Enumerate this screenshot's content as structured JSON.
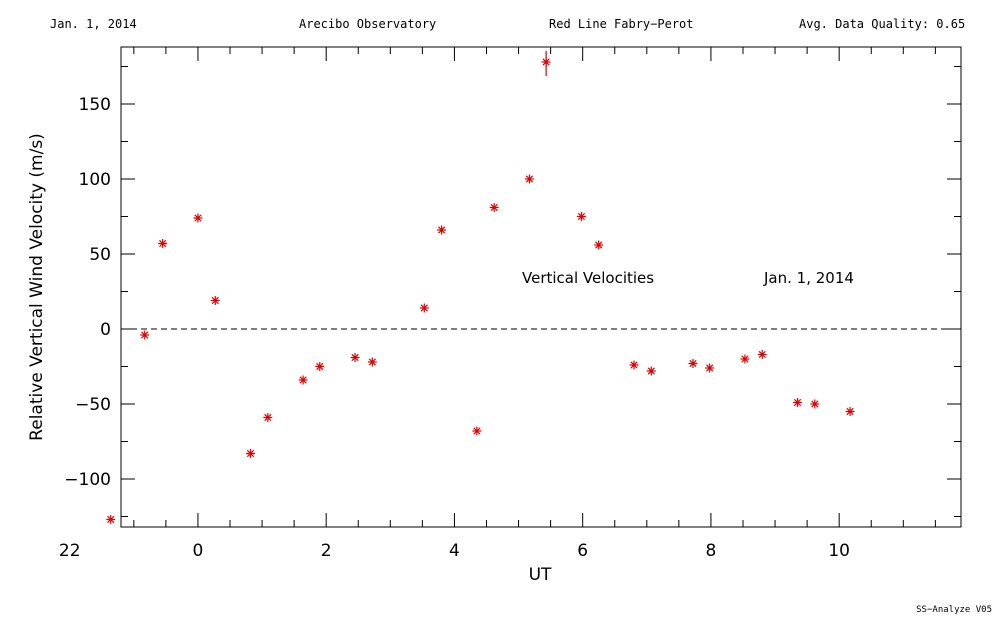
{
  "header": {
    "date": "Jan. 1, 2014",
    "observatory": "Arecibo Observatory",
    "instrument": "Red Line Fabry−Perot",
    "quality": "Avg. Data Quality: 0.65"
  },
  "footer": {
    "software": "SS−Analyze V05"
  },
  "chart_data": {
    "type": "scatter",
    "title": "",
    "xlabel": "UT",
    "ylabel": "Relative Vertical Wind Velocity (m/s)",
    "xlim": [
      -1.2,
      11.9
    ],
    "ylim": [
      -132,
      188
    ],
    "x_ticks": [
      22,
      0,
      2,
      4,
      6,
      8,
      10
    ],
    "y_ticks": [
      150,
      100,
      50,
      0,
      -50,
      -100
    ],
    "annotations": [
      "Vertical Velocities",
      "Jan. 1, 2014"
    ],
    "reference_line": {
      "y": 0,
      "style": "dashed"
    },
    "series": [
      {
        "name": "Vertical Velocities",
        "color": "#dd0000",
        "marker": "asterisk",
        "x": [
          -1.36,
          -0.83,
          -0.55,
          0.0,
          0.27,
          0.82,
          1.09,
          1.64,
          1.9,
          2.45,
          2.72,
          3.53,
          3.8,
          4.35,
          4.62,
          5.17,
          5.43,
          5.98,
          6.25,
          6.8,
          7.07,
          7.72,
          7.98,
          8.53,
          8.8,
          9.35,
          9.62,
          10.17
        ],
        "y": [
          -127,
          -4,
          57,
          74,
          19,
          -83,
          -59,
          -34,
          -25,
          -19,
          -22,
          14,
          66,
          -68,
          81,
          100,
          178,
          75,
          56,
          -24,
          -28,
          -23,
          -26,
          -20,
          -17,
          -49,
          -50,
          -55
        ]
      }
    ]
  }
}
